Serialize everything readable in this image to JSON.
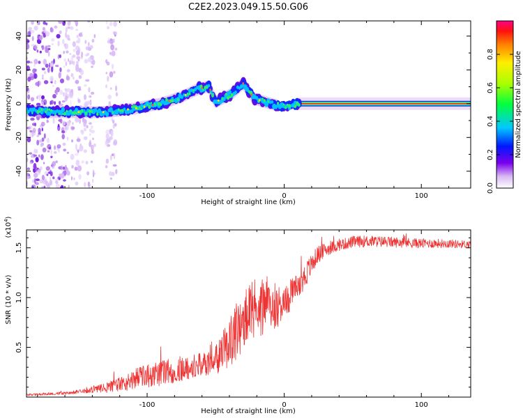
{
  "title": "C2E2.2023.049.15.50.G06",
  "chart_data": [
    {
      "type": "heatmap",
      "xlabel": "Height of straight line (km)",
      "ylabel": "Frequency (Hz)",
      "xlim": [
        -188,
        136
      ],
      "ylim": [
        -50,
        49
      ],
      "x_ticks": [
        -100,
        0,
        100
      ],
      "y_ticks": [
        -40,
        -20,
        0,
        20,
        40
      ],
      "ridge": [
        {
          "x": -188,
          "y": -4
        },
        {
          "x": -170,
          "y": -5
        },
        {
          "x": -150,
          "y": -5
        },
        {
          "x": -130,
          "y": -5
        },
        {
          "x": -110,
          "y": -3
        },
        {
          "x": -90,
          "y": 0
        },
        {
          "x": -75,
          "y": 4
        },
        {
          "x": -62,
          "y": 9
        },
        {
          "x": -55,
          "y": 10
        },
        {
          "x": -50,
          "y": 1
        },
        {
          "x": -38,
          "y": 6
        },
        {
          "x": -30,
          "y": 12
        },
        {
          "x": -22,
          "y": 3
        },
        {
          "x": -10,
          "y": 0
        },
        {
          "x": 0,
          "y": -2
        },
        {
          "x": 10,
          "y": 0
        },
        {
          "x": 136,
          "y": 0
        }
      ],
      "colorbar": {
        "label": "Normalized spectral amplitude",
        "range": [
          0,
          1
        ],
        "ticks": [
          "0.0",
          "0.2",
          "0.4",
          "0.6",
          "0.8"
        ]
      }
    },
    {
      "type": "line",
      "xlabel": "Height of straight line (km)",
      "ylabel": "SNR (10 * v/v)",
      "exponent_label": "(x10",
      "exponent_power": "4",
      "exponent_close": ")",
      "xlim": [
        -188,
        136
      ],
      "ylim": [
        0,
        16800
      ],
      "x_ticks": [
        -100,
        0,
        100
      ],
      "y_ticks": [
        {
          "value": 5000,
          "label": "0.5"
        },
        {
          "value": 10000,
          "label": "1.0"
        },
        {
          "value": 15000,
          "label": "1.5"
        }
      ],
      "series": [
        {
          "name": "SNR",
          "color": "#ee3333",
          "x": [
            -188,
            -170,
            -150,
            -135,
            -120,
            -110,
            -100,
            -90,
            -80,
            -70,
            -60,
            -50,
            -42,
            -36,
            -30,
            -24,
            -18,
            -12,
            -6,
            0,
            6,
            12,
            18,
            24,
            30,
            40,
            50,
            60,
            80,
            100,
            120,
            136
          ],
          "y": [
            200,
            300,
            450,
            700,
            1000,
            1500,
            1800,
            2000,
            2300,
            2600,
            2900,
            3200,
            4500,
            5500,
            6500,
            7500,
            8000,
            8300,
            8500,
            8800,
            10000,
            11000,
            12500,
            14000,
            14600,
            15100,
            15400,
            15500,
            15400,
            15300,
            15300,
            15200
          ],
          "noise": [
            100,
            120,
            200,
            400,
            800,
            1000,
            1200,
            1300,
            1300,
            1300,
            1200,
            1500,
            2300,
            3000,
            3200,
            3200,
            3000,
            2700,
            2300,
            1800,
            1600,
            1500,
            1200,
            900,
            700,
            600,
            600,
            600,
            550,
            500,
            450,
            400
          ]
        }
      ]
    }
  ]
}
